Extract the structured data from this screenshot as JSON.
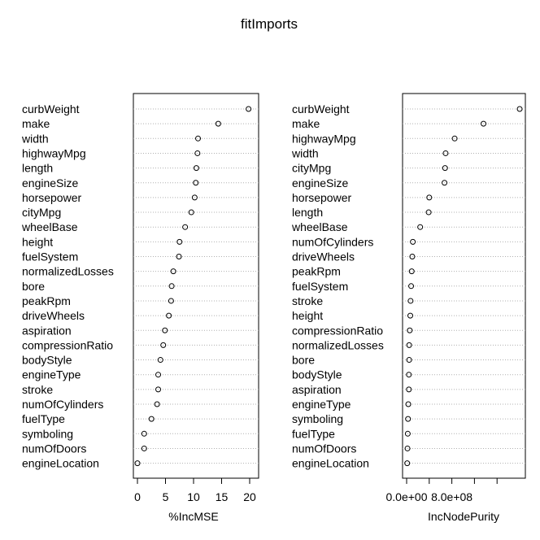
{
  "title": "fitImports",
  "chart_data": [
    {
      "type": "dotchart",
      "xlabel": "%IncMSE",
      "xlim": [
        0,
        20
      ],
      "ticks": [
        0,
        5,
        10,
        15,
        20
      ],
      "tick_labels": [
        "0",
        "5",
        "10",
        "15",
        "20"
      ],
      "categories": [
        "curbWeight",
        "make",
        "width",
        "highwayMpg",
        "length",
        "engineSize",
        "horsepower",
        "cityMpg",
        "wheelBase",
        "height",
        "fuelSystem",
        "normalizedLosses",
        "bore",
        "peakRpm",
        "driveWheels",
        "aspiration",
        "compressionRatio",
        "bodyStyle",
        "engineType",
        "stroke",
        "numOfCylinders",
        "fuelType",
        "symboling",
        "numOfDoors",
        "engineLocation"
      ],
      "values": [
        19.8,
        14.4,
        10.8,
        10.7,
        10.5,
        10.4,
        10.2,
        9.6,
        8.5,
        7.5,
        7.4,
        6.4,
        6.1,
        6.0,
        5.6,
        4.9,
        4.6,
        4.1,
        3.7,
        3.7,
        3.5,
        2.5,
        1.2,
        1.2,
        0.0
      ],
      "grid": true
    },
    {
      "type": "dotchart",
      "xlabel": "IncNodePurity",
      "xlim": [
        0,
        2000000000.0
      ],
      "ticks": [
        0,
        800000000.0
      ],
      "tick_labels": [
        "0.0e+00",
        "8.0e+08"
      ],
      "minor_ticks": [
        400000000.0,
        1200000000.0,
        1600000000.0
      ],
      "categories": [
        "curbWeight",
        "make",
        "highwayMpg",
        "width",
        "cityMpg",
        "engineSize",
        "horsepower",
        "length",
        "wheelBase",
        "numOfCylinders",
        "driveWheels",
        "peakRpm",
        "fuelSystem",
        "stroke",
        "height",
        "compressionRatio",
        "normalizedLosses",
        "bore",
        "bodyStyle",
        "aspiration",
        "engineType",
        "symboling",
        "fuelType",
        "numOfDoors",
        "engineLocation"
      ],
      "values": [
        2000000000.0,
        1360000000.0,
        850000000.0,
        690000000.0,
        680000000.0,
        670000000.0,
        400000000.0,
        390000000.0,
        240000000.0,
        110000000.0,
        100000000.0,
        90000000.0,
        80000000.0,
        70000000.0,
        65000000.0,
        55000000.0,
        45000000.0,
        45000000.0,
        40000000.0,
        40000000.0,
        30000000.0,
        25000000.0,
        20000000.0,
        15000000.0,
        10000000.0
      ],
      "grid": true
    }
  ]
}
